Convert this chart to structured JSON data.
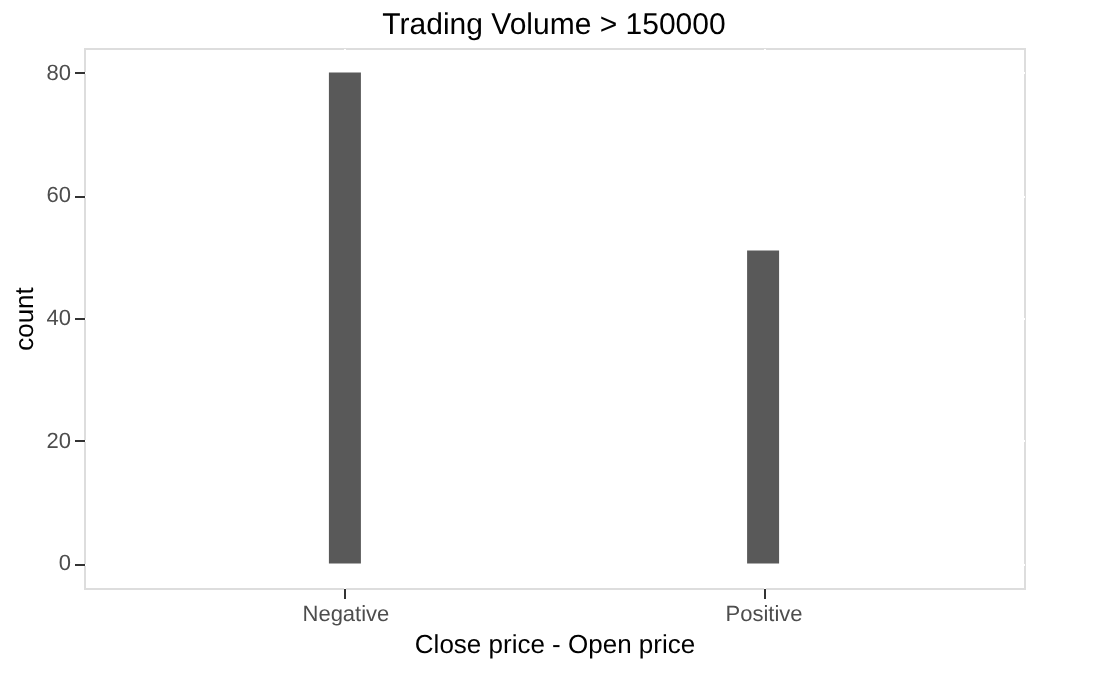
{
  "chart_data": {
    "type": "bar",
    "title": "Trading Volume > 150000",
    "xlabel": "Close price - Open price",
    "ylabel": "count",
    "categories": [
      "Negative",
      "Positive"
    ],
    "series": [
      {
        "color": "#595959",
        "values": [
          80,
          51
        ]
      }
    ],
    "ylim": [
      -4,
      84
    ],
    "yticks": [
      0,
      20,
      40,
      60,
      80
    ],
    "grid": true
  }
}
